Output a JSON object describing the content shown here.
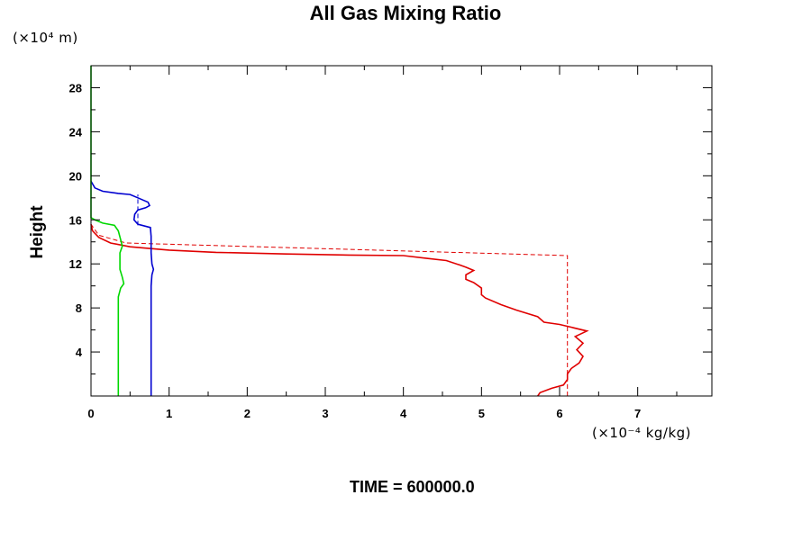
{
  "chart_data": {
    "type": "line",
    "title": "All Gas Mixing Ratio",
    "ylabel": "Height",
    "y_unit": "(×10⁴ m)",
    "x_unit": "(×10⁻⁴ kg/kg)",
    "xlim": [
      0,
      7.95
    ],
    "ylim": [
      0,
      30
    ],
    "x_ticks": [
      0,
      1,
      2,
      3,
      4,
      5,
      6,
      7
    ],
    "y_ticks": [
      4,
      8,
      12,
      16,
      20,
      24,
      28
    ],
    "grid": false,
    "footer": "TIME = 600000.0",
    "series": [
      {
        "color": "#e00000",
        "style": "solid",
        "points": [
          [
            5.72,
            0.0
          ],
          [
            5.75,
            0.3
          ],
          [
            5.9,
            0.7
          ],
          [
            6.05,
            1.0
          ],
          [
            6.1,
            1.5
          ],
          [
            6.1,
            2.0
          ],
          [
            6.15,
            2.5
          ],
          [
            6.25,
            3.0
          ],
          [
            6.3,
            3.6
          ],
          [
            6.22,
            4.2
          ],
          [
            6.3,
            4.8
          ],
          [
            6.2,
            5.4
          ],
          [
            6.35,
            5.9
          ],
          [
            6.0,
            6.5
          ],
          [
            5.8,
            6.7
          ],
          [
            5.72,
            7.2
          ],
          [
            5.45,
            7.8
          ],
          [
            5.25,
            8.3
          ],
          [
            5.05,
            8.9
          ],
          [
            5.0,
            9.2
          ],
          [
            5.0,
            9.8
          ],
          [
            4.9,
            10.3
          ],
          [
            4.8,
            10.6
          ],
          [
            4.8,
            11.0
          ],
          [
            4.9,
            11.4
          ],
          [
            4.8,
            11.7
          ],
          [
            4.72,
            11.9
          ],
          [
            4.55,
            12.3
          ],
          [
            4.3,
            12.5
          ],
          [
            4.0,
            12.75
          ],
          [
            3.3,
            12.8
          ],
          [
            2.5,
            12.9
          ],
          [
            1.6,
            13.05
          ],
          [
            1.0,
            13.25
          ],
          [
            0.5,
            13.55
          ],
          [
            0.25,
            13.9
          ],
          [
            0.1,
            14.4
          ],
          [
            0.02,
            15.0
          ],
          [
            0.0,
            15.6
          ]
        ]
      },
      {
        "color": "#e00000",
        "style": "dashed",
        "points": [
          [
            6.1,
            0.0
          ],
          [
            6.1,
            12.75
          ],
          [
            0.45,
            13.9
          ],
          [
            0.1,
            14.6
          ],
          [
            0.0,
            15.6
          ]
        ]
      },
      {
        "color": "#0000d0",
        "style": "solid",
        "points": [
          [
            0.77,
            0.0
          ],
          [
            0.77,
            10.0
          ],
          [
            0.78,
            11.0
          ],
          [
            0.8,
            11.5
          ],
          [
            0.78,
            12.0
          ],
          [
            0.77,
            13.0
          ],
          [
            0.77,
            14.5
          ],
          [
            0.76,
            15.3
          ],
          [
            0.6,
            15.6
          ],
          [
            0.55,
            16.0
          ],
          [
            0.56,
            16.5
          ],
          [
            0.6,
            16.9
          ],
          [
            0.7,
            17.1
          ],
          [
            0.75,
            17.3
          ],
          [
            0.73,
            17.6
          ],
          [
            0.6,
            18.0
          ],
          [
            0.5,
            18.3
          ],
          [
            0.35,
            18.4
          ],
          [
            0.15,
            18.6
          ],
          [
            0.05,
            18.9
          ],
          [
            0.0,
            19.5
          ]
        ]
      },
      {
        "color": "#0000d0",
        "style": "dashed",
        "points": [
          [
            0.6,
            15.5
          ],
          [
            0.6,
            18.3
          ]
        ]
      },
      {
        "color": "#00d800",
        "style": "solid",
        "points": [
          [
            0.35,
            0.0
          ],
          [
            0.35,
            8.0
          ],
          [
            0.35,
            9.0
          ],
          [
            0.38,
            9.8
          ],
          [
            0.42,
            10.2
          ],
          [
            0.4,
            10.8
          ],
          [
            0.37,
            11.5
          ],
          [
            0.37,
            13.0
          ],
          [
            0.4,
            13.6
          ],
          [
            0.38,
            14.2
          ],
          [
            0.35,
            15.0
          ],
          [
            0.3,
            15.5
          ],
          [
            0.15,
            15.7
          ],
          [
            0.05,
            16.0
          ],
          [
            0.0,
            16.2
          ],
          [
            0.0,
            30.0
          ]
        ]
      }
    ]
  }
}
